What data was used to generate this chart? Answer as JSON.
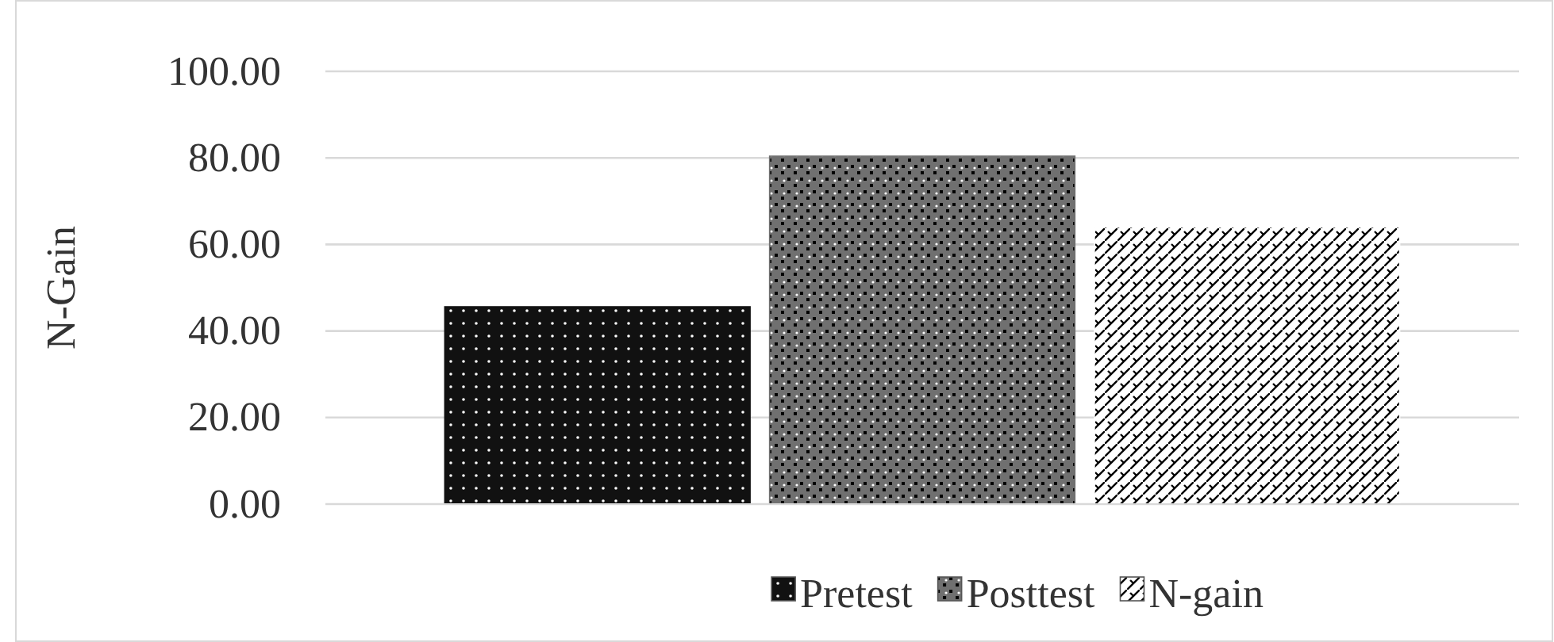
{
  "chart_data": {
    "type": "bar",
    "ylabel": "N-Gain",
    "categories": [
      null
    ],
    "series": [
      {
        "name": "Pretest",
        "color": "#111111",
        "values": [
          45.6
        ]
      },
      {
        "name": "Posttest",
        "color": "#707070",
        "values": [
          80.4
        ]
      },
      {
        "name": "N-gain",
        "color": "#ffffff",
        "values": [
          64.0
        ]
      }
    ],
    "ylim": [
      0,
      100
    ],
    "yticks": [
      {
        "value": 0,
        "label": "0.00"
      },
      {
        "value": 20,
        "label": "20.00"
      },
      {
        "value": 40,
        "label": "40.00"
      },
      {
        "value": 60,
        "label": "60.00"
      },
      {
        "value": 80,
        "label": "80.00"
      },
      {
        "value": 100,
        "label": "100.00"
      }
    ],
    "grid": "y",
    "legend": "bottom"
  }
}
